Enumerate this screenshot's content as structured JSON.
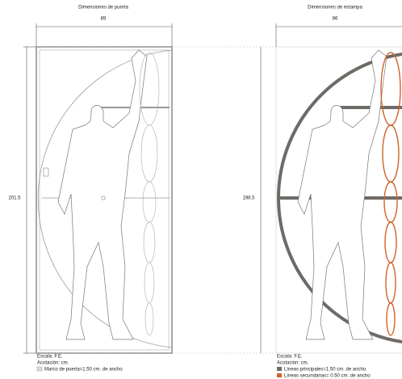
{
  "left_panel": {
    "title": "Dimensiones de puerta",
    "width": "89",
    "height": "201.5",
    "legend": [
      "Escala: F.E.",
      "Acotación: cm.",
      "Marco de puerta=1.50 cm. de ancho"
    ]
  },
  "right_panel": {
    "title": "Dimensiones de estampa",
    "width": "86",
    "height": "198.5",
    "legend": [
      "Escala: F.E.",
      "Acotación: cm.",
      "Líneas principales=1.50 cm. de ancho",
      "Líneas secundarias= 0.50 cm. de ancho"
    ]
  }
}
